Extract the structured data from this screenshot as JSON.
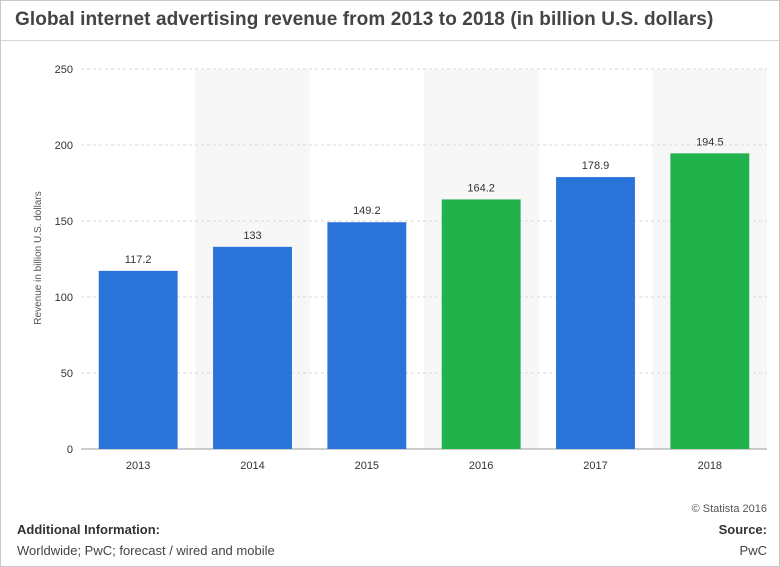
{
  "title": "Global internet advertising revenue from 2013 to 2018 (in billion U.S. dollars)",
  "credit": "© Statista 2016",
  "additional_info": {
    "heading": "Additional Information:",
    "text": "Worldwide; PwC; forecast / wired and mobile"
  },
  "source": {
    "heading": "Source:",
    "text": "PwC"
  },
  "colors": {
    "blue": "#2a74d9",
    "green": "#22b24c",
    "band": "#f7f7f7",
    "grid": "#d9d9d9"
  },
  "chart_data": {
    "type": "bar",
    "title": "Global internet advertising revenue from 2013 to 2018 (in billion U.S. dollars)",
    "xlabel": "",
    "ylabel": "Revenue in billion U.S. dollars",
    "ylim": [
      0,
      250
    ],
    "yticks": [
      0,
      50,
      100,
      150,
      200,
      250
    ],
    "categories": [
      "2013",
      "2014",
      "2015",
      "2016",
      "2017",
      "2018"
    ],
    "values": [
      117.2,
      133,
      149.2,
      164.2,
      178.9,
      194.5
    ],
    "value_labels": [
      "117.2",
      "133",
      "149.2",
      "164.2",
      "178.9",
      "194.5"
    ],
    "bar_colors": [
      "blue",
      "blue",
      "blue",
      "green",
      "blue",
      "green"
    ],
    "grid": true,
    "legend": "none"
  }
}
